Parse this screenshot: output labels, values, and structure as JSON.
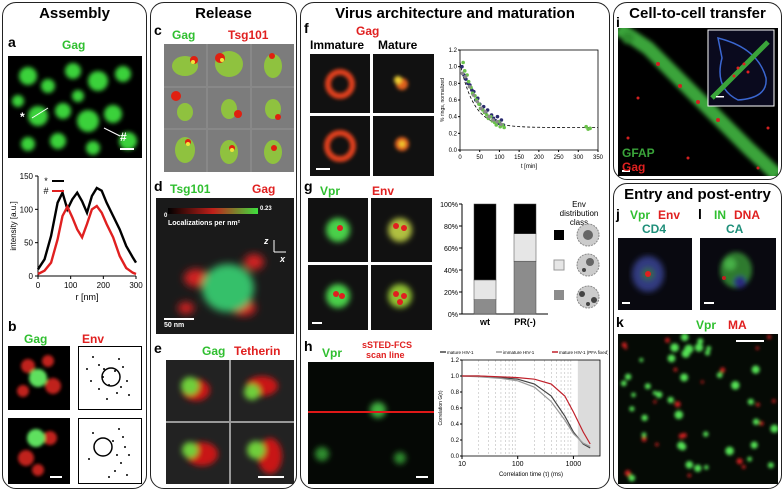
{
  "sections": {
    "assembly": "Assembly",
    "release": "Release",
    "virus": "Virus architecture and maturation",
    "cell_transfer": "Cell-to-cell transfer",
    "entry": "Entry and post-entry"
  },
  "panels": {
    "a": "a",
    "b": "b",
    "c": "c",
    "d": "d",
    "e": "e",
    "f": "f",
    "g": "g",
    "h": "h",
    "i": "i",
    "j": "j",
    "k": "k",
    "l": "l"
  },
  "labels": {
    "a_gag": "Gag",
    "a_star": "*",
    "a_hash": "#",
    "b_gag": "Gag",
    "b_env": "Env",
    "c_gag": "Gag",
    "c_tsg": "Tsg101",
    "d_tsg": "Tsg101",
    "d_gag": "Gag",
    "d_scale_min": "0",
    "d_scale_max": "0.23",
    "d_scale_label": "Localizations per nm²",
    "d_z": "z",
    "d_x": "x",
    "d_scalebar": "50 nm",
    "e_gag": "Gag",
    "e_tetherin": "Tetherin",
    "f_gag": "Gag",
    "f_immature": "Immature",
    "f_mature": "Mature",
    "g_vpr": "Vpr",
    "g_env": "Env",
    "g_legend_title": "Env distribution class",
    "h_vpr": "Vpr",
    "h_ssted": "sSTED-FCS",
    "h_scan": "scan line",
    "i_gfap": "GFAP",
    "i_gag": "Gag",
    "j_vpr": "Vpr",
    "j_env": "Env",
    "j_cd4": "CD4",
    "l_in": "IN",
    "l_dna": "DNA",
    "l_ca": "CA",
    "k_vpr": "Vpr",
    "k_ma": "MA"
  },
  "chart_data": [
    {
      "type": "line",
      "panel": "a",
      "xlabel": "r [nm]",
      "ylabel": "intensity [a.u.]",
      "xlim": [
        0,
        300
      ],
      "ylim": [
        0,
        150
      ],
      "xticks": [
        0,
        100,
        200,
        300
      ],
      "yticks": [
        0,
        50,
        100,
        150
      ],
      "legend": [
        {
          "name": "*",
          "color": "#000000"
        },
        {
          "name": "#",
          "color": "#e02020"
        }
      ],
      "series": [
        {
          "name": "*",
          "color": "#000000",
          "x": [
            0,
            20,
            40,
            60,
            75,
            90,
            105,
            120,
            135,
            150,
            165,
            180,
            195,
            210,
            230,
            250,
            270,
            290,
            300
          ],
          "y": [
            10,
            25,
            60,
            110,
            125,
            100,
            115,
            125,
            112,
            95,
            120,
            132,
            128,
            110,
            90,
            70,
            45,
            28,
            20
          ]
        },
        {
          "name": "#",
          "color": "#e02020",
          "x": [
            0,
            20,
            40,
            60,
            75,
            90,
            105,
            120,
            135,
            150,
            165,
            180,
            195,
            210,
            230,
            250,
            270,
            290,
            300
          ],
          "y": [
            3,
            8,
            20,
            55,
            90,
            104,
            88,
            70,
            58,
            78,
            100,
            105,
            95,
            78,
            58,
            30,
            12,
            5,
            3
          ]
        }
      ]
    },
    {
      "type": "scatter",
      "panel": "f",
      "xlabel": "t [min]",
      "ylabel": "% rings, normalized",
      "xlim": [
        0,
        350
      ],
      "ylim": [
        0,
        1.2
      ],
      "xticks": [
        0,
        50,
        100,
        150,
        200,
        250,
        300,
        350
      ],
      "yticks": [
        0.0,
        0.2,
        0.4,
        0.6,
        0.8,
        1.0,
        1.2
      ],
      "series": [
        {
          "name": "",
          "color": "#2a2a6e",
          "x": [
            5,
            10,
            15,
            20,
            25,
            30,
            35,
            40,
            45,
            50,
            55,
            60,
            65,
            70,
            75,
            80,
            85,
            90,
            95,
            100,
            105,
            110
          ],
          "y": [
            1.0,
            0.9,
            0.85,
            0.8,
            0.78,
            0.72,
            0.7,
            0.6,
            0.62,
            0.55,
            0.5,
            0.52,
            0.45,
            0.48,
            0.4,
            0.42,
            0.38,
            0.35,
            0.4,
            0.32,
            0.36,
            0.3
          ]
        },
        {
          "name": "",
          "color": "#6ac24a",
          "x": [
            8,
            12,
            18,
            22,
            28,
            32,
            38,
            42,
            48,
            52,
            58,
            62,
            68,
            72,
            78,
            82,
            88,
            92,
            98,
            102,
            108,
            112,
            320,
            325,
            330
          ],
          "y": [
            1.05,
            0.95,
            0.9,
            0.82,
            0.75,
            0.68,
            0.65,
            0.6,
            0.55,
            0.5,
            0.48,
            0.45,
            0.42,
            0.38,
            0.4,
            0.35,
            0.33,
            0.3,
            0.34,
            0.28,
            0.3,
            0.27,
            0.28,
            0.25,
            0.26
          ]
        },
        {
          "name": "",
          "color": "#8a8a8a",
          "x": [
            6,
            14,
            24,
            34,
            44,
            54,
            64,
            74,
            84,
            94,
            104
          ],
          "y": [
            0.92,
            0.88,
            0.76,
            0.66,
            0.58,
            0.5,
            0.46,
            0.4,
            0.36,
            0.34,
            0.31
          ]
        }
      ],
      "fit": {
        "style": "dashed",
        "plateau": 0.27
      }
    },
    {
      "type": "bar",
      "panel": "g",
      "stacked": true,
      "categories": [
        "wt",
        "PR(-)"
      ],
      "ylim": [
        0,
        100
      ],
      "yticks": [
        "0%",
        "20%",
        "40%",
        "60%",
        "80%",
        "100%"
      ],
      "series": [
        {
          "name": "",
          "color": "#000000",
          "values": [
            69,
            27
          ]
        },
        {
          "name": "",
          "color": "#e6e6e6",
          "values": [
            18,
            25
          ]
        },
        {
          "name": "",
          "color": "#8c8c8c",
          "values": [
            13,
            48
          ]
        }
      ]
    },
    {
      "type": "line",
      "panel": "h",
      "xlabel": "Correlation time (τ) (ms)",
      "ylabel": "Correlation G(τ)",
      "xscale": "log",
      "xlim": [
        10,
        3000
      ],
      "ylim": [
        0,
        1.2
      ],
      "xticks": [
        10,
        100,
        1000
      ],
      "yticks": [
        0.0,
        0.2,
        0.4,
        0.6,
        0.8,
        1.0,
        1.2
      ],
      "series": [
        {
          "name": "mature HIV-1",
          "color": "#444444",
          "x": [
            10,
            20,
            50,
            100,
            200,
            400,
            700,
            1000,
            1500,
            2000
          ],
          "y": [
            1.0,
            1.0,
            0.98,
            0.96,
            0.9,
            0.75,
            0.5,
            0.3,
            0.15,
            0.1
          ]
        },
        {
          "name": "immature HIV-1",
          "color": "#999999",
          "x": [
            10,
            20,
            50,
            100,
            200,
            400,
            700,
            1000,
            1500,
            2000
          ],
          "y": [
            1.0,
            0.99,
            0.97,
            0.94,
            0.86,
            0.68,
            0.45,
            0.28,
            0.16,
            0.12
          ]
        },
        {
          "name": "mature HIV-1 (PFA fixed)",
          "color": "#c0202a",
          "x": [
            10,
            20,
            50,
            100,
            200,
            400,
            700,
            1000,
            1500,
            2000
          ],
          "y": [
            1.0,
            1.0,
            0.99,
            0.98,
            0.96,
            0.9,
            0.75,
            0.55,
            0.3,
            0.15
          ]
        }
      ]
    }
  ]
}
